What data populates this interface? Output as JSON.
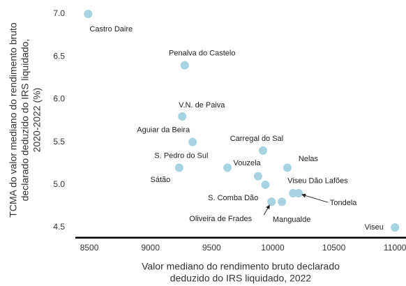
{
  "chart_data": {
    "type": "scatter",
    "y_label": [
      "TCMA do valor mediano do rendimento bruto",
      "declarado deduzido do IRS liquidado,",
      "2020-2022 (%)"
    ],
    "x_label": [
      "Valor mediano do rendimento bruto declarado",
      "deduzido do IRS liquidado, 2022"
    ],
    "labels": [
      "Castro Daire",
      "Penalva do Castelo",
      "V.N. de Paiva",
      "Aguiar da Beira",
      "Sátão",
      "S. Pedro do Sul",
      "Vouzela",
      "Carregal do Sal",
      "Nelas",
      "Viseu Dão Lafões",
      "S. Comba Dão",
      "Tondela",
      "Oliveira de Frades",
      "Mangualde",
      "Viseu"
    ],
    "x": [
      8490,
      9280,
      9260,
      9345,
      9235,
      9880,
      9630,
      9920,
      10120,
      9940,
      10167,
      10212,
      9990,
      10075,
      11000
    ],
    "values": [
      7.0,
      6.4,
      5.8,
      5.5,
      5.2,
      5.1,
      5.2,
      5.4,
      5.2,
      5.0,
      4.9,
      4.9,
      4.8,
      4.8,
      4.5
    ],
    "color": "#a8d3e0",
    "xlim": [
      8340,
      11050
    ],
    "ylim": [
      4.38,
      7.1
    ],
    "xticks": [
      8500,
      9000,
      9500,
      10000,
      10500,
      11000
    ],
    "yticks": [
      {
        "value": 7,
        "label": "7.0"
      },
      6.5,
      {
        "value": 6,
        "label": "6.0"
      },
      5.5,
      {
        "value": 5,
        "label": "5.0"
      },
      4.5
    ],
    "grid": false
  }
}
